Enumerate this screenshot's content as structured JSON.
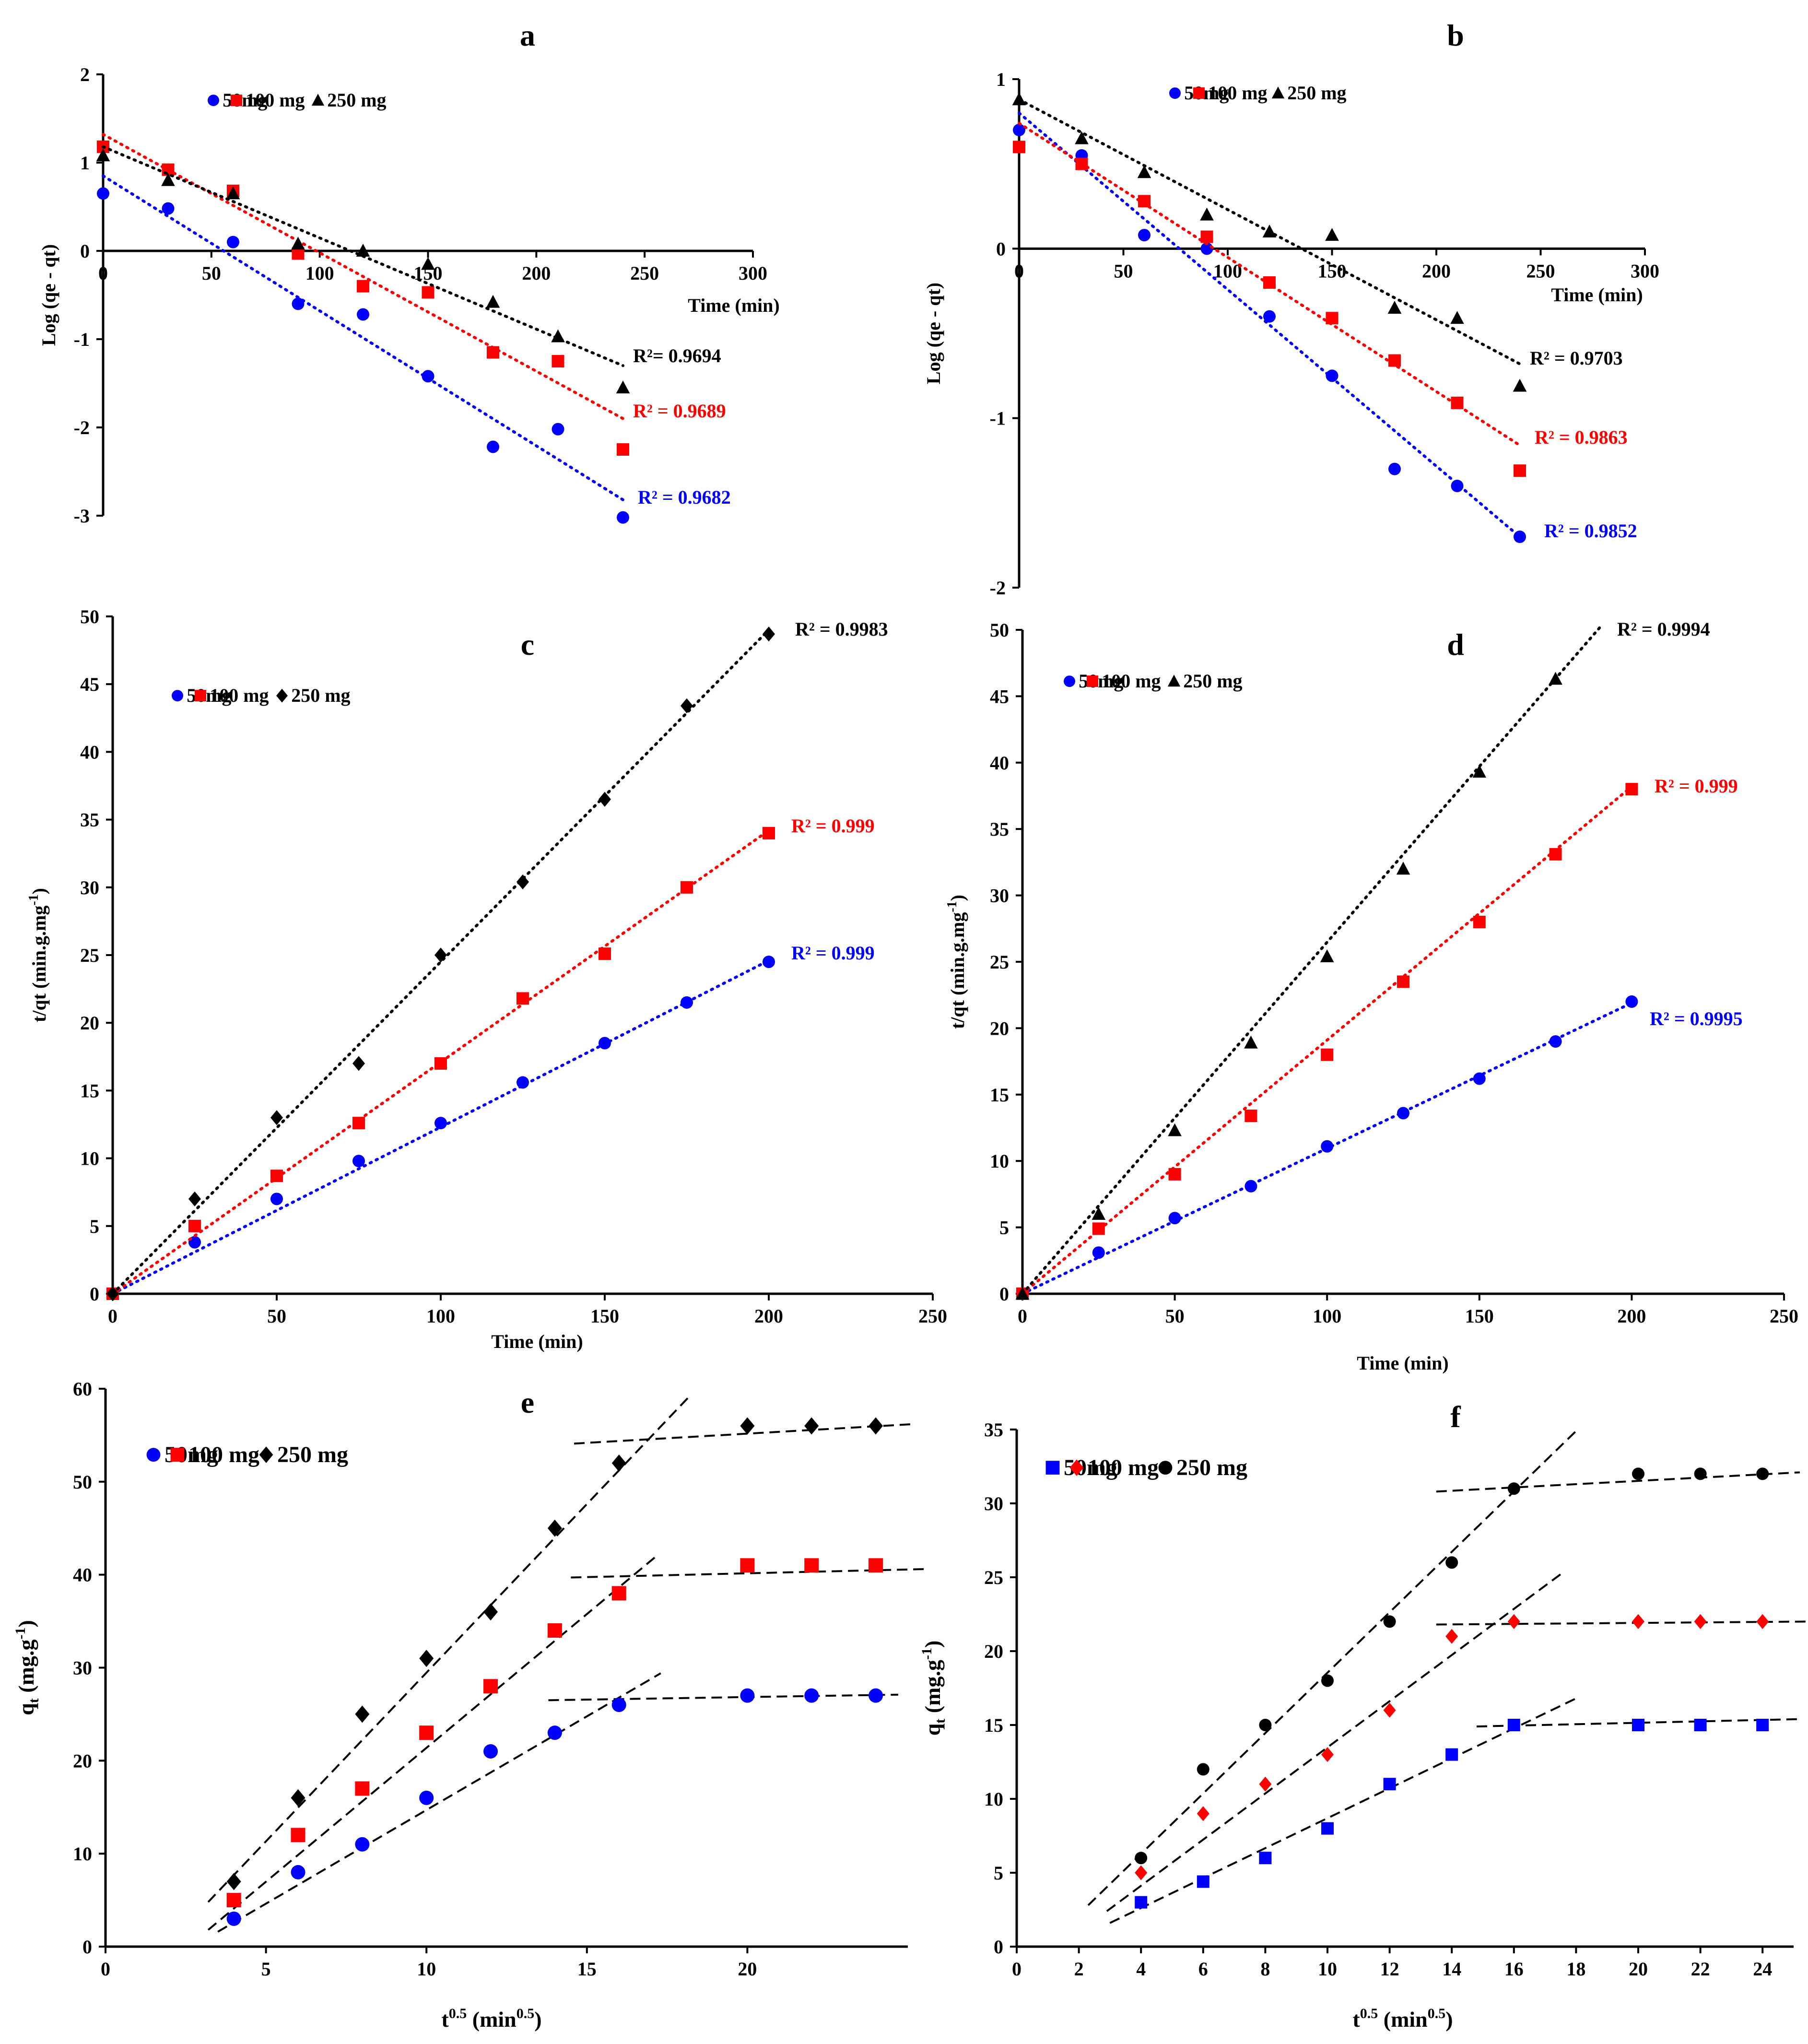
{
  "figure": {
    "title": ""
  },
  "chart_data": [
    {
      "panel": "a",
      "type": "scatter",
      "title": "a",
      "xlabel": "Time (min)",
      "ylabel": "Log (qe - qt)",
      "xlim": [
        0,
        300
      ],
      "ylim": [
        -3,
        2
      ],
      "xticks": [
        0,
        50,
        100,
        150,
        200,
        250,
        300
      ],
      "yticks": [
        -3,
        -2,
        -1,
        0,
        1,
        2
      ],
      "legend_position": "top-left",
      "series": [
        {
          "name": "50mg",
          "color": "#0000ff",
          "marker": "circle",
          "x": [
            0,
            30,
            60,
            90,
            120,
            150,
            180,
            210,
            240
          ],
          "y": [
            0.65,
            0.48,
            0.1,
            -0.6,
            -0.72,
            -1.42,
            -2.22,
            -2.02,
            -3.02
          ],
          "fit": {
            "x": [
              0,
              240
            ],
            "y": [
              0.85,
              -2.82
            ]
          },
          "r2": "R² = 0.9682"
        },
        {
          "name": "100 mg",
          "color": "#ff0000",
          "marker": "square",
          "x": [
            0,
            30,
            60,
            90,
            120,
            150,
            180,
            210,
            240
          ],
          "y": [
            1.18,
            0.92,
            0.68,
            -0.03,
            -0.4,
            -0.47,
            -1.15,
            -1.25,
            -2.25
          ],
          "fit": {
            "x": [
              0,
              240
            ],
            "y": [
              1.32,
              -1.9
            ]
          },
          "r2": "R² = 0.9689"
        },
        {
          "name": "250 mg",
          "color": "#000000",
          "marker": "triangle",
          "x": [
            0,
            30,
            60,
            90,
            120,
            150,
            180,
            210,
            240
          ],
          "y": [
            1.08,
            0.8,
            0.65,
            0.08,
            0.0,
            -0.15,
            -0.58,
            -0.97,
            -1.55
          ],
          "fit": {
            "x": [
              0,
              240
            ],
            "y": [
              1.18,
              -1.3
            ]
          },
          "r2": "R²= 0.9694"
        }
      ]
    },
    {
      "panel": "b",
      "type": "scatter",
      "title": "b",
      "xlabel": "Time (min)",
      "ylabel": "Log (qe - qt)",
      "xlim": [
        0,
        300
      ],
      "ylim": [
        -2,
        1
      ],
      "xticks": [
        0,
        50,
        100,
        150,
        200,
        250,
        300
      ],
      "yticks": [
        -2,
        -1,
        0,
        1
      ],
      "legend_position": "top-center",
      "series": [
        {
          "name": "50mg",
          "color": "#0000ff",
          "marker": "circle",
          "x": [
            0,
            30,
            60,
            90,
            120,
            150,
            180,
            210,
            240
          ],
          "y": [
            0.7,
            0.55,
            0.08,
            0.0,
            -0.4,
            -0.75,
            -1.3,
            -1.4,
            -1.7
          ],
          "fit": {
            "x": [
              0,
              240
            ],
            "y": [
              0.8,
              -1.7
            ]
          },
          "r2": "R² = 0.9852"
        },
        {
          "name": "100 mg",
          "color": "#ff0000",
          "marker": "square",
          "x": [
            0,
            30,
            60,
            90,
            120,
            150,
            180,
            210,
            240
          ],
          "y": [
            0.6,
            0.5,
            0.28,
            0.07,
            -0.2,
            -0.41,
            -0.66,
            -0.91,
            -1.31
          ],
          "fit": {
            "x": [
              0,
              240
            ],
            "y": [
              0.74,
              -1.16
            ]
          },
          "r2": "R² = 0.9863"
        },
        {
          "name": "250 mg",
          "color": "#000000",
          "marker": "triangle",
          "x": [
            0,
            30,
            60,
            90,
            120,
            150,
            180,
            210,
            240
          ],
          "y": [
            0.88,
            0.65,
            0.45,
            0.2,
            0.1,
            0.08,
            -0.35,
            -0.41,
            -0.81
          ],
          "fit": {
            "x": [
              0,
              240
            ],
            "y": [
              0.88,
              -0.68
            ]
          },
          "r2": "R² = 0.9703"
        }
      ]
    },
    {
      "panel": "c",
      "type": "scatter",
      "title": "c",
      "xlabel": "Time (min)",
      "ylabel": "t/qt (min.g.mg",
      "ylabel_sup": "-1",
      "ylabel_close": ")",
      "xlim": [
        0,
        250
      ],
      "ylim": [
        0,
        50
      ],
      "xticks": [
        0,
        50,
        100,
        150,
        200,
        250
      ],
      "yticks": [
        0,
        5,
        10,
        15,
        20,
        25,
        30,
        35,
        40,
        45,
        50
      ],
      "legend_position": "top-left",
      "series": [
        {
          "name": "50mg",
          "color": "#0000ff",
          "marker": "circle",
          "x": [
            0,
            25,
            50,
            75,
            100,
            125,
            150,
            175,
            200
          ],
          "y": [
            0,
            3.8,
            7.0,
            9.8,
            12.6,
            15.6,
            18.5,
            21.5,
            24.5
          ],
          "fit": {
            "x": [
              0,
              200
            ],
            "y": [
              0,
              24.6
            ]
          },
          "r2": "R² = 0.999"
        },
        {
          "name": "100 mg",
          "color": "#ff0000",
          "marker": "square",
          "x": [
            0,
            25,
            50,
            75,
            100,
            125,
            150,
            175,
            200
          ],
          "y": [
            0,
            5.0,
            8.7,
            12.6,
            17.0,
            21.8,
            25.1,
            30.0,
            34.0
          ],
          "fit": {
            "x": [
              0,
              200
            ],
            "y": [
              0,
              34.2
            ]
          },
          "r2": "R² = 0.999"
        },
        {
          "name": "250 mg",
          "color": "#000000",
          "marker": "diamond",
          "x": [
            0,
            25,
            50,
            75,
            100,
            125,
            150,
            175,
            200
          ],
          "y": [
            0,
            7.0,
            13.0,
            17.0,
            25.0,
            30.4,
            36.5,
            43.4,
            48.7
          ],
          "fit": {
            "x": [
              0,
              200
            ],
            "y": [
              0,
              49.0
            ]
          },
          "r2": "R² = 0.9983"
        }
      ]
    },
    {
      "panel": "d",
      "type": "scatter",
      "title": "d",
      "xlabel": "Time (min)",
      "ylabel": "t/qt (min.g.mg",
      "ylabel_sup": "-1",
      "ylabel_close": ")",
      "xlim": [
        0,
        250
      ],
      "ylim": [
        0,
        50
      ],
      "xticks": [
        0,
        50,
        100,
        150,
        200,
        250
      ],
      "yticks": [
        0,
        5,
        10,
        15,
        20,
        25,
        30,
        35,
        40,
        45,
        50
      ],
      "legend_position": "top-left",
      "series": [
        {
          "name": "50mg",
          "color": "#0000ff",
          "marker": "circle",
          "x": [
            0,
            25,
            50,
            75,
            100,
            125,
            150,
            175,
            200
          ],
          "y": [
            0,
            3.1,
            5.7,
            8.1,
            11.1,
            13.6,
            16.2,
            19.0,
            22.0
          ],
          "fit": {
            "x": [
              0,
              200
            ],
            "y": [
              0,
              21.9
            ]
          },
          "r2": "R² = 0.9995"
        },
        {
          "name": "100 mg",
          "color": "#ff0000",
          "marker": "square",
          "x": [
            0,
            25,
            50,
            75,
            100,
            125,
            150,
            175,
            200
          ],
          "y": [
            0,
            4.9,
            9.0,
            13.4,
            18.0,
            23.5,
            28.0,
            33.1,
            38.0
          ],
          "fit": {
            "x": [
              0,
              200
            ],
            "y": [
              0,
              38.2
            ]
          },
          "r2": "R² = 0.999"
        },
        {
          "name": "250 mg",
          "color": "#000000",
          "marker": "triangle",
          "x": [
            0,
            25,
            50,
            75,
            100,
            125,
            150,
            175
          ],
          "y": [
            0,
            6.0,
            12.3,
            18.9,
            25.4,
            32.0,
            39.3,
            46.3
          ],
          "fit": {
            "x": [
              0,
              190
            ],
            "y": [
              0,
              50.3
            ]
          },
          "r2": "R² = 0.9994"
        }
      ]
    },
    {
      "panel": "e",
      "type": "scatter",
      "title": "e",
      "xlabel": "t",
      "xlabel_sup": "0.5",
      "xlabel_mid": " (min",
      "xlabel_sup2": "0.5",
      "xlabel_close": ")",
      "ylabel": "q",
      "ylabel_sub": "t",
      "ylabel_mid": " (mg.g",
      "ylabel_sup": "-1",
      "ylabel_close": ")",
      "xlim": [
        0,
        25
      ],
      "ylim": [
        0,
        60
      ],
      "xticks": [
        0,
        5,
        10,
        15,
        20
      ],
      "yticks": [
        0,
        10,
        20,
        30,
        40,
        50,
        60
      ],
      "legend_position": "top-left",
      "series": [
        {
          "name": "50mg",
          "color": "#0000ff",
          "marker": "circle",
          "x": [
            4,
            6,
            8,
            10,
            12,
            14,
            16,
            20,
            22,
            24
          ],
          "y": [
            3,
            8,
            11,
            16,
            21,
            23,
            26,
            27,
            27,
            27
          ],
          "fits": [
            {
              "x": [
                3.5,
                17.3
              ],
              "y": [
                1.6,
                29.4
              ]
            },
            {
              "x": [
                13.8,
                24.7
              ],
              "y": [
                26.5,
                27.1
              ]
            }
          ]
        },
        {
          "name": "100 mg",
          "color": "#ff0000",
          "marker": "square",
          "x": [
            4,
            6,
            8,
            10,
            12,
            14,
            16,
            20,
            22,
            24
          ],
          "y": [
            5,
            12,
            17,
            23,
            28,
            34,
            38,
            41,
            41,
            41
          ],
          "fits": [
            {
              "x": [
                3.2,
                17.2
              ],
              "y": [
                1.8,
                42.1
              ]
            },
            {
              "x": [
                14.5,
                25.5
              ],
              "y": [
                39.7,
                40.6
              ]
            }
          ]
        },
        {
          "name": "250 mg",
          "color": "#000000",
          "marker": "diamond",
          "x": [
            4,
            6,
            8,
            10,
            12,
            14,
            16,
            20,
            22,
            24
          ],
          "y": [
            7,
            16,
            25,
            31,
            36,
            45,
            52,
            56,
            56,
            56
          ],
          "fits": [
            {
              "x": [
                3.2,
                18.2
              ],
              "y": [
                4.8,
                59.2
              ]
            },
            {
              "x": [
                14.6,
                25.2
              ],
              "y": [
                54.1,
                56.2
              ]
            }
          ]
        }
      ]
    },
    {
      "panel": "f",
      "type": "scatter",
      "title": "f",
      "xlabel": "t",
      "xlabel_sup": "0.5",
      "xlabel_mid": " (min",
      "xlabel_sup2": "0.5",
      "xlabel_close": ")",
      "ylabel": "q",
      "ylabel_sub": "t",
      "ylabel_mid": " (mg.g",
      "ylabel_sup": "-1",
      "ylabel_close": ")",
      "xlim": [
        0,
        25
      ],
      "ylim": [
        0,
        35
      ],
      "xticks": [
        0,
        2,
        4,
        6,
        8,
        10,
        12,
        14,
        16,
        18,
        20,
        22,
        24
      ],
      "yticks": [
        0,
        5,
        10,
        15,
        20,
        25,
        30,
        35
      ],
      "legend_position": "top-left",
      "series": [
        {
          "name": "50mg",
          "color": "#0000ff",
          "marker": "square",
          "x": [
            4,
            6,
            8,
            10,
            12,
            14,
            16,
            20,
            22,
            24
          ],
          "y": [
            3,
            4.4,
            6,
            8,
            11,
            13,
            15,
            15,
            15,
            15
          ],
          "fits": [
            {
              "x": [
                3.0,
                18.0
              ],
              "y": [
                1.6,
                16.8
              ]
            },
            {
              "x": [
                14.8,
                25.2
              ],
              "y": [
                14.9,
                15.4
              ]
            }
          ]
        },
        {
          "name": "100 mg",
          "color": "#ff0000",
          "marker": "diamond",
          "x": [
            4,
            6,
            8,
            10,
            12,
            14,
            16,
            20,
            22,
            24
          ],
          "y": [
            5,
            9,
            11,
            13,
            16,
            21,
            22,
            22,
            22,
            22
          ],
          "fits": [
            {
              "x": [
                2.9,
                17.5
              ],
              "y": [
                2.4,
                25.2
              ]
            },
            {
              "x": [
                13.5,
                25.4
              ],
              "y": [
                21.8,
                22.0
              ]
            }
          ]
        },
        {
          "name": "250 mg",
          "color": "#000000",
          "marker": "circle",
          "x": [
            4,
            6,
            8,
            10,
            12,
            14,
            16,
            20,
            22,
            24
          ],
          "y": [
            6,
            12,
            15,
            18,
            22,
            26,
            31,
            32,
            32,
            32
          ],
          "fits": [
            {
              "x": [
                2.3,
                18.1
              ],
              "y": [
                2.8,
                35.1
              ]
            },
            {
              "x": [
                13.5,
                25.2
              ],
              "y": [
                30.8,
                32.1
              ]
            }
          ]
        }
      ]
    }
  ]
}
